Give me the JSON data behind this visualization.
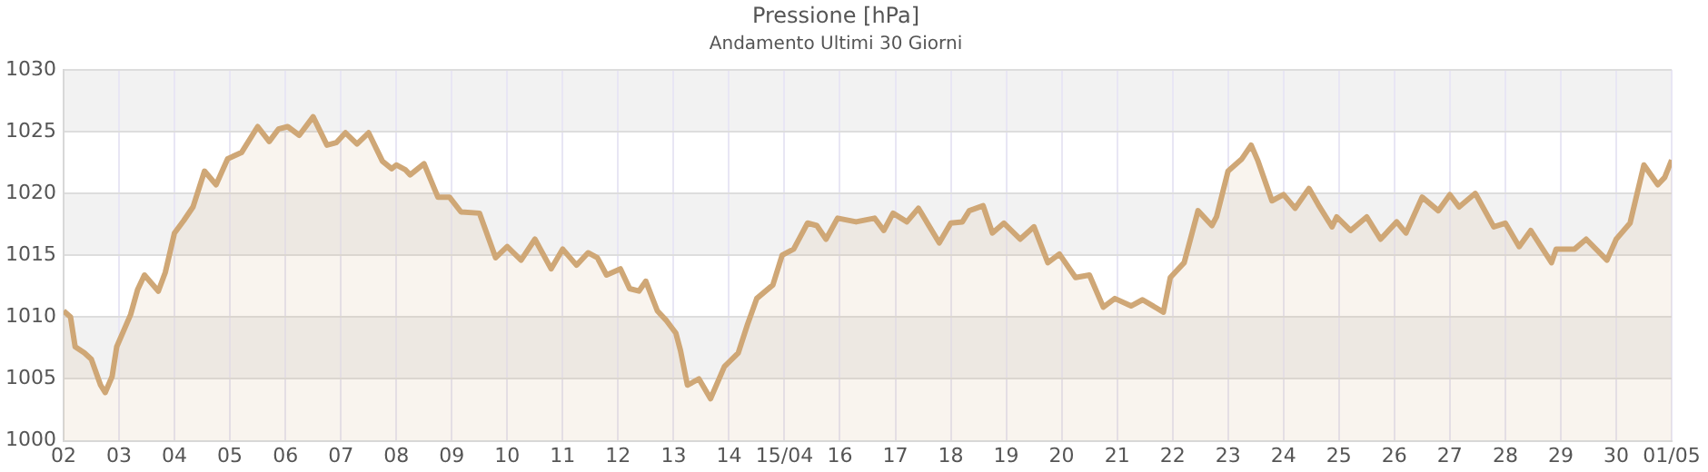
{
  "chart_data": {
    "type": "area",
    "title": "Pressione [hPa]",
    "subtitle": "Andamento Ultimi 30 Giorni",
    "x": [
      "--04-02T00:00",
      "--04-02T03:00",
      "--04-02T05:00",
      "--04-02T09:00",
      "--04-02T12:00",
      "--04-02T16:00",
      "--04-02T18:00",
      "--04-02T21:00",
      "--04-02T23:00",
      "--04-03T05:00",
      "--04-03T08:00",
      "--04-03T11:00",
      "--04-03T17:00",
      "--04-03T20:00",
      "--04-04T00:00",
      "--04-04T04:00",
      "--04-04T08:00",
      "--04-04T13:00",
      "--04-04T18:00",
      "--04-04T23:00",
      "--04-05T05:00",
      "--04-05T12:00",
      "--04-05T17:00",
      "--04-05T21:00",
      "--04-06T01:00",
      "--04-06T06:00",
      "--04-06T12:00",
      "--04-06T18:00",
      "--04-06T22:00",
      "--04-07T02:00",
      "--04-07T07:00",
      "--04-07T12:00",
      "--04-07T18:00",
      "--04-07T22:00",
      "--04-08T00:00",
      "--04-08T04:00",
      "--04-08T06:00",
      "--04-08T12:00",
      "--04-08T18:00",
      "--04-08T23:00",
      "--04-09T04:00",
      "--04-09T12:00",
      "--04-09T19:00",
      "--04-10T00:00",
      "--04-10T06:00",
      "--04-10T12:00",
      "--04-10T19:00",
      "--04-11T00:00",
      "--04-11T06:00",
      "--04-11T11:00",
      "--04-11T15:00",
      "--04-11T19:00",
      "--04-12T01:00",
      "--04-12T05:00",
      "--04-12T09:00",
      "--04-12T12:00",
      "--04-12T17:00",
      "--04-12T21:00",
      "--04-13T01:00",
      "--04-13T03:00",
      "--04-13T06:00",
      "--04-13T11:00",
      "--04-13T16:00",
      "--04-13T22:00",
      "--04-14T04:00",
      "--04-14T08:00",
      "--04-14T12:00",
      "--04-14T19:00",
      "--04-14T23:00",
      "--04-15T04:00",
      "--04-15T10:00",
      "--04-15T14:00",
      "--04-15T18:00",
      "--04-15T23:00",
      "--04-16T07:00",
      "--04-16T15:00",
      "--04-16T19:00",
      "--04-16T23:00",
      "--04-17T05:00",
      "--04-17T10:00",
      "--04-17T19:00",
      "--04-18T00:00",
      "--04-18T05:00",
      "--04-18T08:00",
      "--04-18T14:00",
      "--04-18T18:00",
      "--04-18T23:00",
      "--04-19T06:00",
      "--04-19T12:00",
      "--04-19T18:00",
      "--04-19T23:00",
      "--04-20T06:00",
      "--04-20T12:00",
      "--04-20T18:00",
      "--04-20T23:00",
      "--04-21T06:00",
      "--04-21T11:00",
      "--04-21T20:00",
      "--04-21T23:00",
      "--04-22T05:00",
      "--04-22T11:00",
      "--04-22T17:00",
      "--04-22T19:00",
      "--04-23T00:00",
      "--04-23T06:00",
      "--04-23T10:00",
      "--04-23T13:00",
      "--04-23T19:00",
      "--04-24T00:00",
      "--04-24T05:00",
      "--04-24T11:00",
      "--04-24T15:00",
      "--04-24T21:00",
      "--04-24T23:00",
      "--04-25T05:00",
      "--04-25T12:00",
      "--04-25T18:00",
      "--04-26T01:00",
      "--04-26T05:00",
      "--04-26T12:00",
      "--04-26T19:00",
      "--04-27T00:00",
      "--04-27T04:00",
      "--04-27T11:00",
      "--04-27T19:00",
      "--04-28T00:00",
      "--04-28T06:00",
      "--04-28T11:00",
      "--04-28T20:00",
      "--04-28T22:00",
      "--04-29T06:00",
      "--04-29T11:00",
      "--04-29T20:00",
      "--04-30T00:00",
      "--04-30T06:00",
      "--04-30T12:00",
      "--04-30T18:00",
      "--04-30T21:00",
      "--05-01T00:00"
    ],
    "series": [
      {
        "color": "#cfa776",
        "values": [
          1010.5,
          1010,
          1007.6,
          1007.1,
          1006.6,
          1004.5,
          1003.9,
          1005.2,
          1007.6,
          1010.2,
          1012.2,
          1013.4,
          1012.1,
          1013.6,
          1016.8,
          1017.8,
          1018.9,
          1021.8,
          1020.7,
          1022.8,
          1023.3,
          1025.4,
          1024.2,
          1025.2,
          1025.4,
          1024.7,
          1026.2,
          1023.9,
          1024.1,
          1024.9,
          1024,
          1024.9,
          1022.6,
          1022,
          1022.3,
          1021.9,
          1021.5,
          1022.4,
          1019.7,
          1019.7,
          1018.5,
          1018.4,
          1014.8,
          1015.7,
          1014.6,
          1016.3,
          1013.9,
          1015.5,
          1014.2,
          1015.2,
          1014.8,
          1013.4,
          1013.9,
          1012.3,
          1012.1,
          1012.9,
          1010.5,
          1009.7,
          1008.7,
          1007.3,
          1004.5,
          1005,
          1003.4,
          1006,
          1007.1,
          1009.4,
          1011.5,
          1012.6,
          1015,
          1015.5,
          1017.6,
          1017.4,
          1016.3,
          1018,
          1017.7,
          1018,
          1017,
          1018.4,
          1017.7,
          1018.8,
          1016,
          1017.6,
          1017.7,
          1018.6,
          1019,
          1016.8,
          1017.6,
          1016.3,
          1017.3,
          1014.4,
          1015.1,
          1013.2,
          1013.4,
          1010.8,
          1011.5,
          1010.9,
          1011.4,
          1010.4,
          1013.2,
          1014.4,
          1018.6,
          1017.4,
          1018.1,
          1021.8,
          1022.8,
          1023.9,
          1022.6,
          1019.4,
          1019.9,
          1018.8,
          1020.4,
          1019.1,
          1017.3,
          1018.1,
          1017,
          1018.1,
          1016.3,
          1017.7,
          1016.8,
          1019.7,
          1018.6,
          1019.9,
          1018.9,
          1020,
          1017.3,
          1017.6,
          1015.7,
          1017,
          1014.4,
          1015.5,
          1015.5,
          1016.3,
          1014.6,
          1016.3,
          1017.6,
          1022.3,
          1020.7,
          1021.3,
          1022.7
        ]
      }
    ],
    "xlim": [
      "--04-02",
      "--05-01"
    ],
    "xticks": [
      {
        "value": "--04-02",
        "label": "02"
      },
      {
        "value": "--04-03",
        "label": "03"
      },
      {
        "value": "--04-04",
        "label": "04"
      },
      {
        "value": "--04-05",
        "label": "05"
      },
      {
        "value": "--04-06",
        "label": "06"
      },
      {
        "value": "--04-07",
        "label": "07"
      },
      {
        "value": "--04-08",
        "label": "08"
      },
      {
        "value": "--04-09",
        "label": "09"
      },
      {
        "value": "--04-10",
        "label": "10"
      },
      {
        "value": "--04-11",
        "label": "11"
      },
      {
        "value": "--04-12",
        "label": "12"
      },
      {
        "value": "--04-13",
        "label": "13"
      },
      {
        "value": "--04-14",
        "label": "14"
      },
      {
        "value": "--04-15",
        "label": "15/04"
      },
      {
        "value": "--04-16",
        "label": "16"
      },
      {
        "value": "--04-17",
        "label": "17"
      },
      {
        "value": "--04-18",
        "label": "18"
      },
      {
        "value": "--04-19",
        "label": "19"
      },
      {
        "value": "--04-20",
        "label": "20"
      },
      {
        "value": "--04-21",
        "label": "21"
      },
      {
        "value": "--04-22",
        "label": "22"
      },
      {
        "value": "--04-23",
        "label": "23"
      },
      {
        "value": "--04-24",
        "label": "24"
      },
      {
        "value": "--04-25",
        "label": "25"
      },
      {
        "value": "--04-26",
        "label": "26"
      },
      {
        "value": "--04-27",
        "label": "27"
      },
      {
        "value": "--04-28",
        "label": "28"
      },
      {
        "value": "--04-29",
        "label": "29"
      },
      {
        "value": "--04-30",
        "label": "30"
      },
      {
        "value": "--05-01",
        "label": "01/05"
      }
    ],
    "ylim": [
      1000,
      1030
    ],
    "yticks": [
      1000,
      1005,
      1010,
      1015,
      1020,
      1025,
      1030
    ],
    "grid": true,
    "legend": false,
    "marker": "none",
    "bands": [
      {
        "axis": "y",
        "from": 1005,
        "to": 1010,
        "color": "#f2f2f2"
      },
      {
        "axis": "y",
        "from": 1015,
        "to": 1020,
        "color": "#f2f2f2"
      },
      {
        "axis": "y",
        "from": 1025,
        "to": 1030,
        "color": "#f2f2f2"
      }
    ]
  }
}
